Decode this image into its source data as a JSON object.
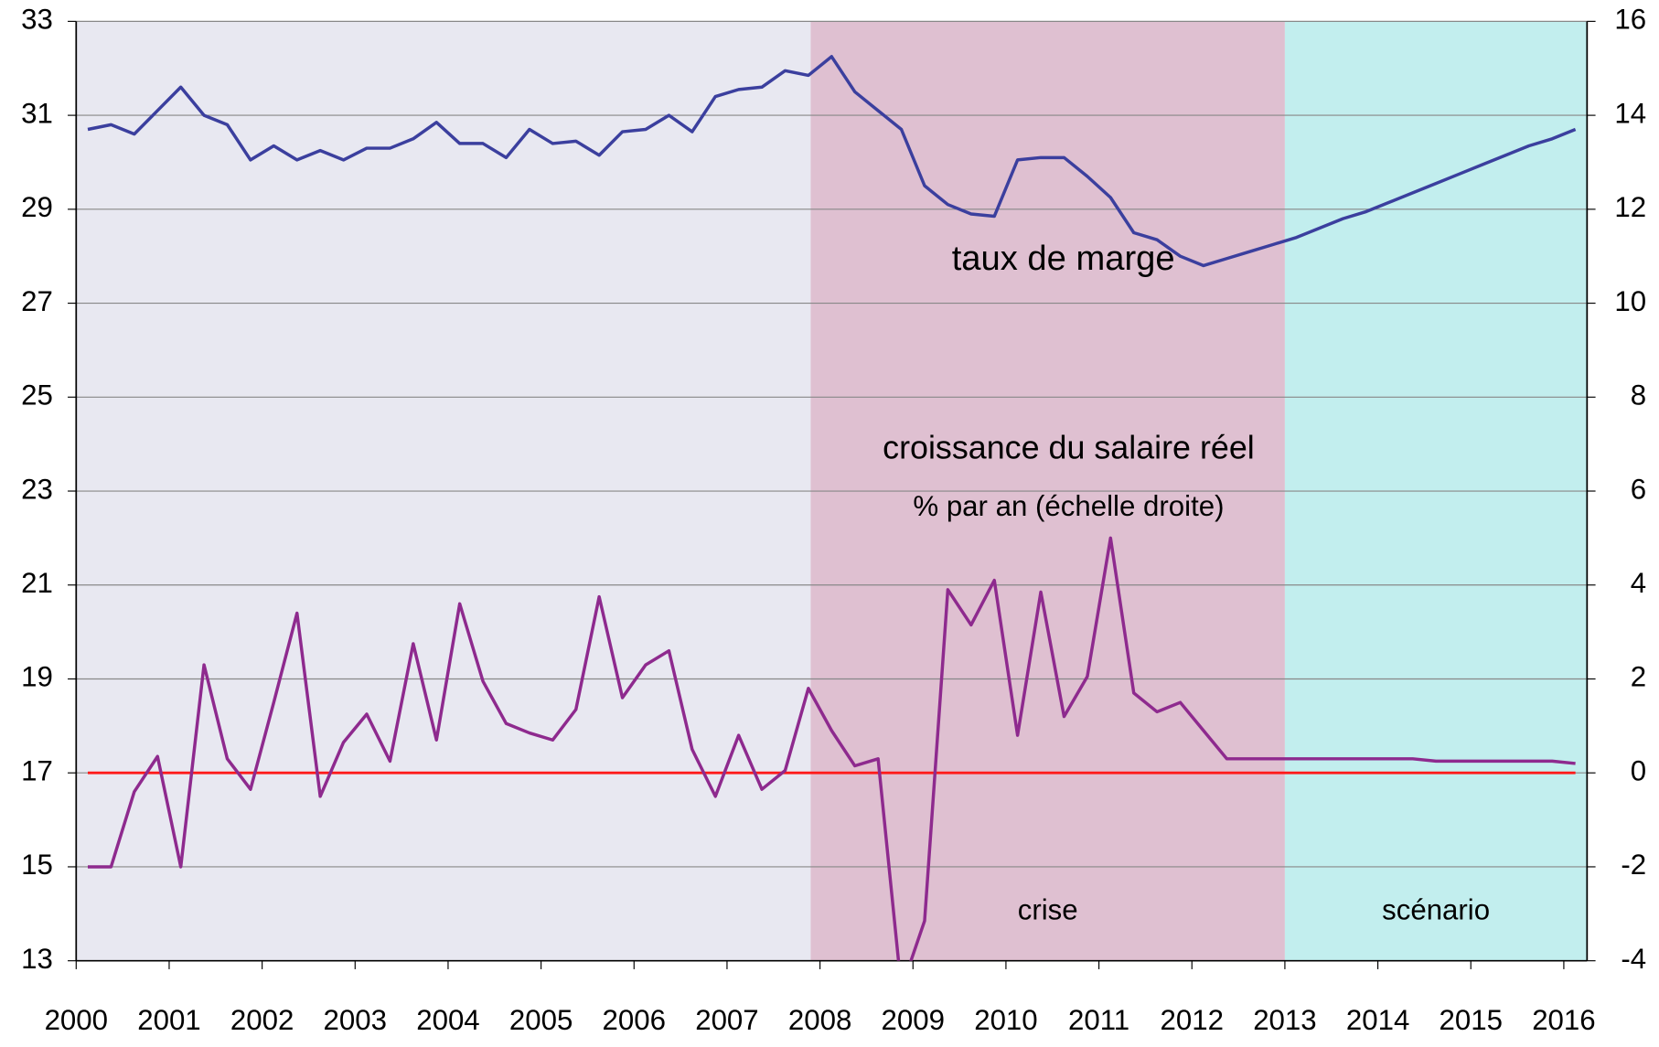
{
  "chart_data": {
    "type": "line",
    "x": [
      2000.125,
      2000.375,
      2000.625,
      2000.875,
      2001.125,
      2001.375,
      2001.625,
      2001.875,
      2002.125,
      2002.375,
      2002.625,
      2002.875,
      2003.125,
      2003.375,
      2003.625,
      2003.875,
      2004.125,
      2004.375,
      2004.625,
      2004.875,
      2005.125,
      2005.375,
      2005.625,
      2005.875,
      2006.125,
      2006.375,
      2006.625,
      2006.875,
      2007.125,
      2007.375,
      2007.625,
      2007.875,
      2008.125,
      2008.375,
      2008.625,
      2008.875,
      2009.125,
      2009.375,
      2009.625,
      2009.875,
      2010.125,
      2010.375,
      2010.625,
      2010.875,
      2011.125,
      2011.375,
      2011.625,
      2011.875,
      2012.125,
      2012.375,
      2012.625,
      2012.875,
      2013.125,
      2013.375,
      2013.625,
      2013.875,
      2014.125,
      2014.375,
      2014.625,
      2014.875,
      2015.125,
      2015.375,
      2015.625,
      2015.875,
      2016.125
    ],
    "series": [
      {
        "name": "taux de marge",
        "color": "#3b3f9e",
        "axis": "y",
        "values": [
          30.7,
          30.8,
          30.6,
          31.1,
          31.6,
          31.0,
          30.8,
          30.05,
          30.35,
          30.05,
          30.25,
          30.05,
          30.3,
          30.3,
          30.5,
          30.85,
          30.4,
          30.4,
          30.1,
          30.7,
          30.4,
          30.45,
          30.15,
          30.65,
          30.7,
          31.0,
          30.65,
          31.4,
          31.55,
          31.6,
          31.95,
          31.85,
          32.25,
          31.5,
          31.1,
          30.7,
          29.5,
          29.1,
          28.9,
          28.85,
          30.05,
          30.1,
          30.1,
          29.7,
          29.25,
          28.5,
          28.35,
          28.0,
          27.8,
          27.95,
          28.1,
          28.25,
          28.4,
          28.6,
          28.8,
          28.95,
          29.15,
          29.35,
          29.55,
          29.75,
          29.95,
          30.15,
          30.35,
          30.5,
          30.7
        ]
      },
      {
        "name": "croissance du salaire réel",
        "color": "#8e2a8e",
        "axis": "y2",
        "values": [
          -2.0,
          -2.0,
          -0.4,
          0.35,
          -2.0,
          2.3,
          0.3,
          -0.35,
          1.5,
          3.4,
          -0.5,
          0.65,
          1.25,
          0.25,
          2.75,
          0.7,
          3.6,
          1.95,
          1.05,
          0.85,
          0.7,
          1.35,
          3.75,
          1.6,
          2.3,
          2.6,
          0.5,
          -0.5,
          0.8,
          -0.35,
          0.05,
          1.8,
          0.9,
          0.15,
          0.3,
          -4.6,
          -3.15,
          3.9,
          3.15,
          4.1,
          0.8,
          3.85,
          1.2,
          2.05,
          5.0,
          1.7,
          1.3,
          1.5,
          0.9,
          0.3,
          0.3,
          0.3,
          0.3,
          0.3,
          0.3,
          0.3,
          0.3,
          0.3,
          0.25,
          0.25,
          0.25,
          0.25,
          0.25,
          0.25,
          0.2
        ]
      }
    ],
    "annotations": [
      "taux de marge",
      "croissance du salaire réel",
      "% par an (échelle droite)"
    ],
    "regions": [
      {
        "from": 2000,
        "to": 2007.9,
        "color": "#e8e8f1"
      },
      {
        "from": 2007.9,
        "to": 2013,
        "color": "#dfc0d1",
        "label": "crise"
      },
      {
        "from": 2013,
        "to": 2016.25,
        "color": "#c2eeee",
        "label": "scénario"
      }
    ],
    "reference_line": {
      "value": 0,
      "axis": "y2",
      "color": "#ff1a1a"
    },
    "xlim": [
      2000,
      2016.25
    ],
    "xticks": [
      2000,
      2001,
      2002,
      2003,
      2004,
      2005,
      2006,
      2007,
      2008,
      2009,
      2010,
      2011,
      2012,
      2013,
      2014,
      2015,
      2016
    ],
    "ylim": [
      13,
      33
    ],
    "yticks": [
      13,
      15,
      17,
      19,
      21,
      23,
      25,
      27,
      29,
      31,
      33
    ],
    "y2lim": [
      -4,
      16
    ],
    "y2ticks": [
      -4,
      -2,
      0,
      2,
      4,
      6,
      8,
      10,
      12,
      14,
      16
    ],
    "grid": true
  }
}
